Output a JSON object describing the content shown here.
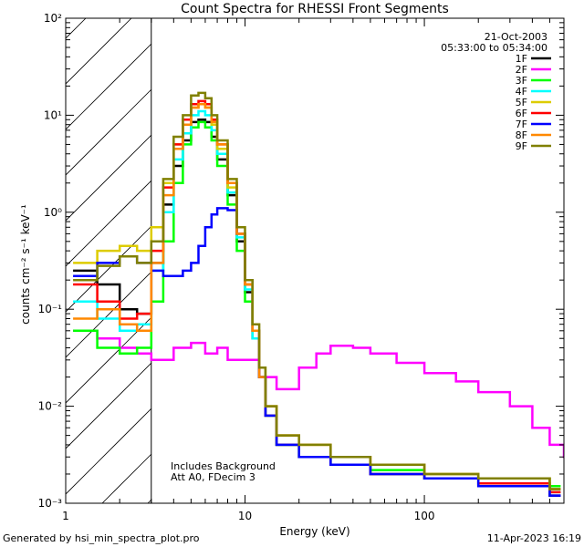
{
  "chart_data": {
    "type": "line",
    "title": "Count Spectra for RHESSI Front Segments",
    "xlabel": "Energy (keV)",
    "ylabel": "counts cm⁻² s⁻¹ keV⁻¹",
    "xscale": "log",
    "yscale": "log",
    "xlim": [
      1,
      600
    ],
    "ylim": [
      0.001,
      100
    ],
    "x_ticks": [
      "1",
      "10",
      "100"
    ],
    "y_ticks": [
      "10⁻³",
      "10⁻²",
      "10⁻¹",
      "10⁰",
      "10¹",
      "10²"
    ],
    "date": "21-Oct-2003",
    "time_range": "05:33:00 to 05:34:00",
    "shaded_region_keV": [
      1,
      3
    ],
    "annotation_lines": [
      "Includes Background",
      "Att A0, FDecim 3"
    ],
    "series": [
      {
        "name": "1F",
        "color": "#000000",
        "x": [
          1.1,
          1.5,
          2,
          2.5,
          3,
          3.5,
          4,
          4.5,
          5,
          5.5,
          6,
          6.5,
          7,
          8,
          9,
          10,
          11,
          12,
          13,
          15,
          20,
          30,
          50,
          100,
          200,
          500
        ],
        "y": [
          0.25,
          0.18,
          0.1,
          0.09,
          0.3,
          1.2,
          3.0,
          5.5,
          8.5,
          9.0,
          8.5,
          6.0,
          3.5,
          1.5,
          0.5,
          0.15,
          0.05,
          0.02,
          0.008,
          0.004,
          0.003,
          0.0025,
          0.002,
          0.0018,
          0.0015,
          0.0012
        ]
      },
      {
        "name": "2F",
        "color": "#ff00ff",
        "x": [
          1.1,
          1.5,
          2,
          2.5,
          3,
          4,
          5,
          6,
          7,
          8,
          10,
          12,
          15,
          20,
          25,
          30,
          40,
          50,
          70,
          100,
          150,
          200,
          300,
          400,
          500,
          600
        ],
        "y": [
          0.06,
          0.05,
          0.04,
          0.035,
          0.03,
          0.04,
          0.045,
          0.035,
          0.04,
          0.03,
          0.03,
          0.02,
          0.015,
          0.025,
          0.035,
          0.042,
          0.04,
          0.035,
          0.028,
          0.022,
          0.018,
          0.014,
          0.01,
          0.006,
          0.004,
          0.003
        ]
      },
      {
        "name": "3F",
        "color": "#00ff00",
        "x": [
          1.1,
          1.5,
          2,
          2.5,
          3,
          3.5,
          4,
          4.5,
          5,
          5.5,
          6,
          6.5,
          7,
          8,
          9,
          10,
          11,
          12,
          13,
          15,
          20,
          30,
          50,
          100,
          200,
          500
        ],
        "y": [
          0.06,
          0.04,
          0.035,
          0.04,
          0.12,
          0.5,
          2.0,
          5.0,
          7.5,
          8.5,
          7.5,
          5.5,
          3.0,
          1.2,
          0.4,
          0.12,
          0.05,
          0.02,
          0.008,
          0.004,
          0.003,
          0.0025,
          0.0022,
          0.002,
          0.0018,
          0.0015
        ]
      },
      {
        "name": "4F",
        "color": "#00ffff",
        "x": [
          1.1,
          1.5,
          2,
          2.5,
          3,
          3.5,
          4,
          4.5,
          5,
          5.5,
          6,
          6.5,
          7,
          8,
          9,
          10,
          11,
          12,
          13,
          15,
          20,
          30,
          50,
          100,
          200,
          500
        ],
        "y": [
          0.12,
          0.08,
          0.06,
          0.07,
          0.25,
          1.0,
          3.5,
          6.5,
          10.0,
          11.0,
          10.0,
          7.0,
          4.0,
          1.6,
          0.55,
          0.16,
          0.05,
          0.02,
          0.008,
          0.004,
          0.003,
          0.0025,
          0.002,
          0.0018,
          0.0016,
          0.0013
        ]
      },
      {
        "name": "5F",
        "color": "#ddcc00",
        "x": [
          1.1,
          1.5,
          2,
          2.5,
          3,
          3.5,
          4,
          4.5,
          5,
          5.5,
          6,
          6.5,
          7,
          8,
          9,
          10,
          11,
          12,
          13,
          15,
          20,
          30,
          50,
          100,
          200,
          500
        ],
        "y": [
          0.3,
          0.4,
          0.45,
          0.4,
          0.7,
          2.0,
          5.0,
          8.0,
          12.0,
          13.0,
          12.0,
          8.0,
          4.5,
          1.8,
          0.6,
          0.18,
          0.06,
          0.025,
          0.01,
          0.005,
          0.004,
          0.003,
          0.0025,
          0.002,
          0.0018,
          0.0014
        ]
      },
      {
        "name": "6F",
        "color": "#ff0000",
        "x": [
          1.1,
          1.5,
          2,
          2.5,
          3,
          3.5,
          4,
          4.5,
          5,
          5.5,
          6,
          6.5,
          7,
          8,
          9,
          10,
          11,
          12,
          13,
          15,
          20,
          30,
          50,
          100,
          200,
          500
        ],
        "y": [
          0.18,
          0.12,
          0.08,
          0.09,
          0.4,
          1.8,
          5.0,
          9.0,
          13.0,
          14.0,
          13.0,
          9.0,
          5.0,
          2.0,
          0.6,
          0.18,
          0.06,
          0.02,
          0.008,
          0.004,
          0.003,
          0.0025,
          0.002,
          0.0018,
          0.0016,
          0.0013
        ]
      },
      {
        "name": "7F",
        "color": "#0000ff",
        "x": [
          1.1,
          1.5,
          2,
          2.5,
          3,
          3.5,
          4,
          4.5,
          5,
          5.5,
          6,
          6.5,
          7,
          8,
          9,
          10,
          11,
          12,
          13,
          15,
          20,
          30,
          50,
          100,
          200,
          500
        ],
        "y": [
          0.22,
          0.3,
          0.35,
          0.3,
          0.25,
          0.22,
          0.22,
          0.25,
          0.3,
          0.45,
          0.7,
          0.95,
          1.1,
          1.05,
          0.6,
          0.2,
          0.06,
          0.02,
          0.008,
          0.004,
          0.003,
          0.0025,
          0.002,
          0.0018,
          0.0015,
          0.0012
        ]
      },
      {
        "name": "8F",
        "color": "#ff8800",
        "x": [
          1.1,
          1.5,
          2,
          2.5,
          3,
          3.5,
          4,
          4.5,
          5,
          5.5,
          6,
          6.5,
          7,
          8,
          9,
          10,
          11,
          12,
          13,
          15,
          20,
          30,
          50,
          100,
          200,
          500
        ],
        "y": [
          0.08,
          0.1,
          0.07,
          0.06,
          0.3,
          1.5,
          4.5,
          8.0,
          12.0,
          13.0,
          12.0,
          8.5,
          5.0,
          2.0,
          0.6,
          0.18,
          0.06,
          0.02,
          0.01,
          0.005,
          0.004,
          0.003,
          0.0025,
          0.002,
          0.0018,
          0.0014
        ]
      },
      {
        "name": "9F",
        "color": "#808000",
        "x": [
          1.1,
          1.5,
          2,
          2.5,
          3,
          3.5,
          4,
          4.5,
          5,
          5.5,
          6,
          6.5,
          7,
          8,
          9,
          10,
          11,
          12,
          13,
          15,
          20,
          30,
          50,
          100,
          200,
          500
        ],
        "y": [
          0.2,
          0.28,
          0.35,
          0.3,
          0.5,
          2.2,
          6.0,
          10.0,
          16.0,
          17.0,
          15.0,
          10.0,
          5.5,
          2.2,
          0.7,
          0.2,
          0.07,
          0.025,
          0.01,
          0.005,
          0.004,
          0.003,
          0.0025,
          0.002,
          0.0018,
          0.0014
        ]
      }
    ]
  },
  "footer": {
    "generator": "Generated by hsi_min_spectra_plot.pro",
    "timestamp": "11-Apr-2023 16:19"
  }
}
